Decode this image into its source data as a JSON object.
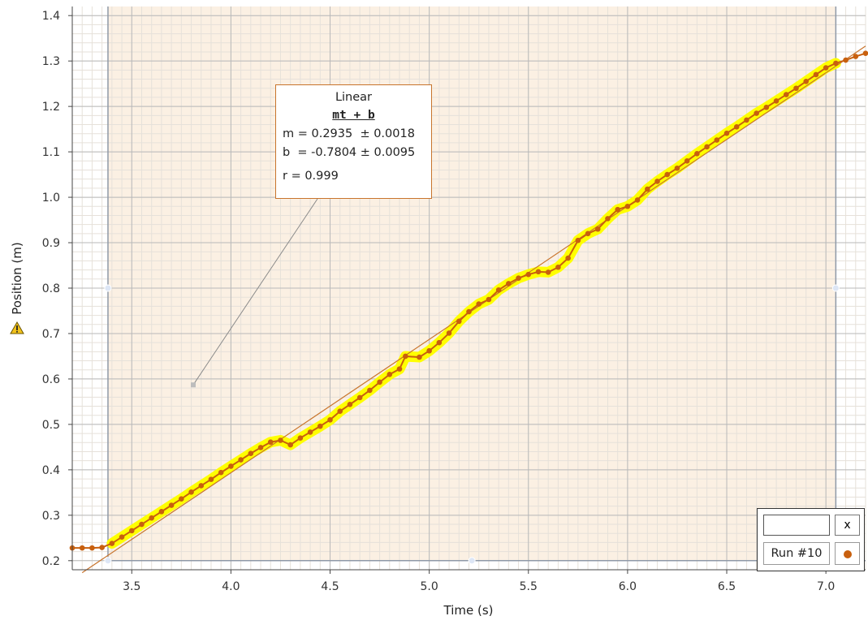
{
  "chart_data": {
    "type": "line",
    "xlabel": "Time (s)",
    "ylabel": "Position (m)",
    "xlim": [
      3.2,
      7.2
    ],
    "ylim": [
      0.18,
      1.42
    ],
    "x_ticks": [
      3.5,
      4.0,
      4.5,
      5.0,
      5.5,
      6.0,
      6.5,
      7.0
    ],
    "x_tick_labels": [
      "3.5",
      "4.0",
      "4.5",
      "5.0",
      "5.5",
      "6.0",
      "6.5",
      "7.0"
    ],
    "y_ticks": [
      0.2,
      0.3,
      0.4,
      0.5,
      0.6,
      0.7,
      0.8,
      0.9,
      1.0,
      1.1,
      1.2,
      1.3,
      1.4
    ],
    "y_tick_labels": [
      "0.2",
      "0.3",
      "0.4",
      "0.5",
      "0.6",
      "0.7",
      "0.8",
      "0.9",
      "1.0",
      "1.1",
      "1.2",
      "1.3",
      "1.4"
    ],
    "grid": true,
    "selection_range": [
      3.38,
      7.05
    ],
    "series": [
      {
        "name": "Run #10",
        "color": "#c8600e",
        "highlight_color": "#ffff00",
        "points": [
          [
            3.2,
            0.228
          ],
          [
            3.25,
            0.228
          ],
          [
            3.3,
            0.228
          ],
          [
            3.35,
            0.229
          ],
          [
            3.4,
            0.238
          ],
          [
            3.45,
            0.252
          ],
          [
            3.5,
            0.266
          ],
          [
            3.55,
            0.28
          ],
          [
            3.6,
            0.294
          ],
          [
            3.65,
            0.308
          ],
          [
            3.7,
            0.322
          ],
          [
            3.75,
            0.336
          ],
          [
            3.8,
            0.351
          ],
          [
            3.85,
            0.365
          ],
          [
            3.9,
            0.379
          ],
          [
            3.95,
            0.394
          ],
          [
            4.0,
            0.408
          ],
          [
            4.05,
            0.422
          ],
          [
            4.1,
            0.436
          ],
          [
            4.15,
            0.449
          ],
          [
            4.2,
            0.461
          ],
          [
            4.25,
            0.465
          ],
          [
            4.3,
            0.455
          ],
          [
            4.35,
            0.47
          ],
          [
            4.4,
            0.483
          ],
          [
            4.45,
            0.496
          ],
          [
            4.5,
            0.51
          ],
          [
            4.55,
            0.529
          ],
          [
            4.6,
            0.544
          ],
          [
            4.65,
            0.559
          ],
          [
            4.7,
            0.575
          ],
          [
            4.75,
            0.593
          ],
          [
            4.8,
            0.61
          ],
          [
            4.85,
            0.622
          ],
          [
            4.88,
            0.65
          ],
          [
            4.95,
            0.648
          ],
          [
            5.0,
            0.662
          ],
          [
            5.05,
            0.68
          ],
          [
            5.1,
            0.701
          ],
          [
            5.15,
            0.727
          ],
          [
            5.2,
            0.748
          ],
          [
            5.25,
            0.765
          ],
          [
            5.3,
            0.775
          ],
          [
            5.35,
            0.796
          ],
          [
            5.4,
            0.81
          ],
          [
            5.45,
            0.822
          ],
          [
            5.5,
            0.83
          ],
          [
            5.55,
            0.836
          ],
          [
            5.6,
            0.835
          ],
          [
            5.65,
            0.846
          ],
          [
            5.7,
            0.866
          ],
          [
            5.75,
            0.905
          ],
          [
            5.8,
            0.92
          ],
          [
            5.85,
            0.93
          ],
          [
            5.9,
            0.953
          ],
          [
            5.95,
            0.973
          ],
          [
            6.0,
            0.98
          ],
          [
            6.05,
            0.994
          ],
          [
            6.1,
            1.018
          ],
          [
            6.15,
            1.035
          ],
          [
            6.2,
            1.05
          ],
          [
            6.25,
            1.064
          ],
          [
            6.3,
            1.08
          ],
          [
            6.35,
            1.096
          ],
          [
            6.4,
            1.111
          ],
          [
            6.45,
            1.126
          ],
          [
            6.5,
            1.141
          ],
          [
            6.55,
            1.155
          ],
          [
            6.6,
            1.17
          ],
          [
            6.65,
            1.185
          ],
          [
            6.7,
            1.198
          ],
          [
            6.75,
            1.212
          ],
          [
            6.8,
            1.226
          ],
          [
            6.85,
            1.24
          ],
          [
            6.9,
            1.255
          ],
          [
            6.95,
            1.27
          ],
          [
            7.0,
            1.285
          ],
          [
            7.05,
            1.295
          ],
          [
            7.1,
            1.302
          ],
          [
            7.15,
            1.31
          ],
          [
            7.2,
            1.317
          ]
        ]
      }
    ],
    "fit": {
      "title": "Linear",
      "equation": "mt + b",
      "m_line": "m = 0.2935  ± 0.0018",
      "b_line": "b  = -0.7804 ± 0.0095",
      "r_line": "r = 0.999",
      "m": 0.2935,
      "b": -0.7804,
      "annotation_anchor": [
        3.81,
        0.587
      ]
    },
    "legend": {
      "run_label": "Run #10",
      "close_label": "x",
      "name_value": ""
    },
    "colors": {
      "plot_background": "#fbf0e3",
      "selection_tint": "#f6e6d4",
      "grid_major": "#b9b9b9",
      "grid_minor": "#e6e1da",
      "fit_line": "#c8742c"
    }
  }
}
